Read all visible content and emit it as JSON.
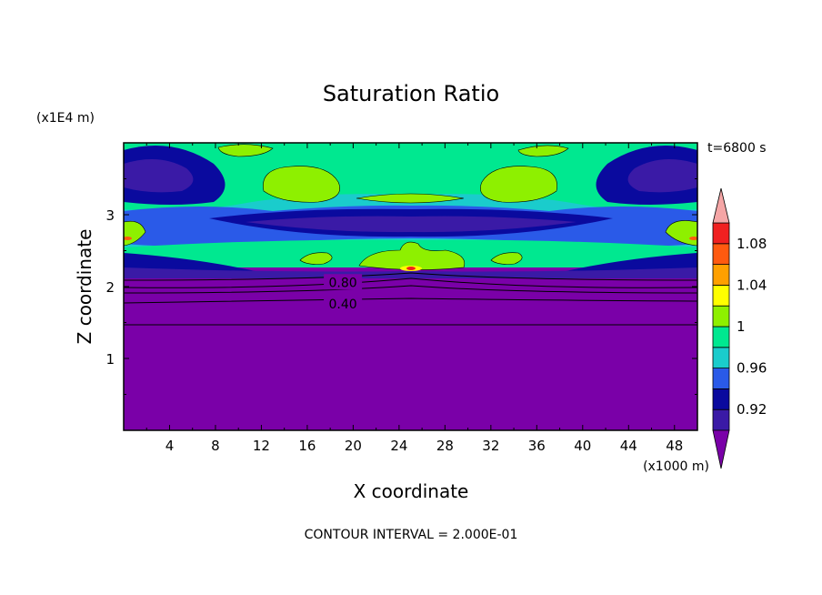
{
  "chart_data": {
    "type": "heatmap",
    "title": "Saturation Ratio",
    "xlabel": "X coordinate",
    "ylabel": "Z coordinate",
    "x_unit": "(x1000 m)",
    "y_unit": "(x1E4 m)",
    "time_label": "t=6800 s",
    "footer": "CONTOUR INTERVAL = 2.000E-01",
    "xlim": [
      0,
      50
    ],
    "ylim": [
      0,
      4
    ],
    "x_ticks": [
      "4",
      "8",
      "12",
      "16",
      "20",
      "24",
      "28",
      "32",
      "36",
      "40",
      "44",
      "48"
    ],
    "x_tick_values": [
      4,
      8,
      12,
      16,
      20,
      24,
      28,
      32,
      36,
      40,
      44,
      48
    ],
    "y_ticks": [
      "1",
      "2",
      "3"
    ],
    "y_tick_values": [
      1,
      2,
      3
    ],
    "contour_labels": [
      {
        "text": "0.80",
        "x": 17.6,
        "z": 2.06
      },
      {
        "text": "0.40",
        "x": 17.6,
        "z": 1.76
      }
    ],
    "colorbar": {
      "labels": [
        "1.08",
        "1.04",
        "1",
        "0.96",
        "0.92"
      ],
      "label_values": [
        1.08,
        1.04,
        1.0,
        0.96,
        0.92
      ],
      "levels": [
        0.9,
        0.92,
        0.94,
        0.96,
        0.98,
        1.0,
        1.02,
        1.04,
        1.06,
        1.08,
        1.1
      ],
      "colors": [
        "#3a1aa6",
        "#0a0a9e",
        "#2a5ae8",
        "#1acccc",
        "#00e890",
        "#8ef000",
        "#ffff00",
        "#ffa000",
        "#ff5a10",
        "#f02020"
      ],
      "under_color": "#7a00a8",
      "over_color": "#f5a6a6"
    }
  }
}
